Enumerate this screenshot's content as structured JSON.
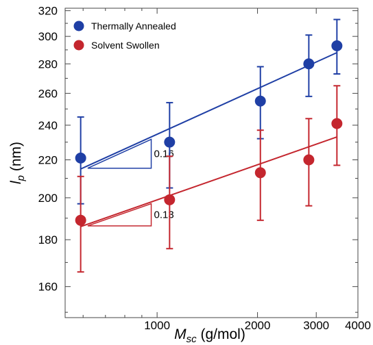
{
  "chart_data": {
    "type": "scatter",
    "title": "",
    "xlabel": "M",
    "xlabel_sub": "sc",
    "xlabel_unit": " (g/mol)",
    "ylabel": "l",
    "ylabel_sub": "p",
    "ylabel_unit": " (nm)",
    "x_scale": "log",
    "y_scale": "log",
    "xlim": [
      530,
      4000
    ],
    "ylim": [
      148,
      322
    ],
    "x_ticks": [
      1000,
      2000,
      3000,
      4000
    ],
    "x_tick_labels": [
      "1000",
      "2000",
      "3000",
      "4000"
    ],
    "y_ticks": [
      160,
      180,
      200,
      220,
      240,
      260,
      280,
      300,
      320
    ],
    "y_tick_labels": [
      "160",
      "180",
      "200",
      "220",
      "240",
      "260",
      "280",
      "300",
      "320"
    ],
    "legend_position": "top-left",
    "series": [
      {
        "name": "Thermally Annealed",
        "color": "#1f3fa5",
        "x": [
          590,
          1090,
          2040,
          2850,
          3460
        ],
        "y": [
          221,
          230,
          255,
          280,
          293
        ],
        "y_low": [
          197,
          205,
          232,
          258,
          273
        ],
        "y_high": [
          245,
          254,
          278,
          301,
          313
        ],
        "fit": {
          "x": [
            590,
            3460
          ],
          "y": [
            215,
            288
          ]
        },
        "slope_label": "0.16"
      },
      {
        "name": "Solvent Swollen",
        "color": "#c4262e",
        "x": [
          590,
          1090,
          2040,
          2850,
          3460
        ],
        "y": [
          189,
          199,
          213,
          220,
          241
        ],
        "y_low": [
          166,
          176,
          189,
          196,
          217
        ],
        "y_high": [
          211,
          222,
          237,
          244,
          265
        ],
        "fit": {
          "x": [
            590,
            3460
          ],
          "y": [
            186,
            233
          ]
        },
        "slope_label": "0.13"
      }
    ]
  }
}
